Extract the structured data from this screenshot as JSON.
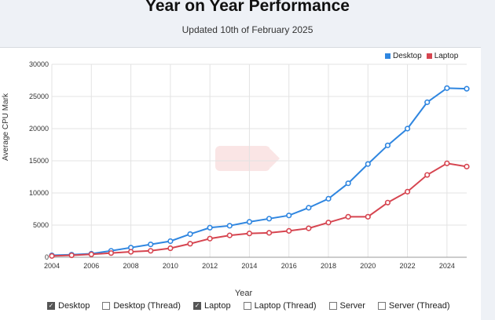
{
  "header": {
    "title": "Year on Year Performance",
    "subtitle": "Updated 10th of February 2025"
  },
  "legend": [
    {
      "label": "Desktop",
      "color": "#2f86e0"
    },
    {
      "label": "Laptop",
      "color": "#d64550"
    }
  ],
  "toggles": [
    {
      "label": "Desktop",
      "checked": true
    },
    {
      "label": "Desktop (Thread)",
      "checked": false
    },
    {
      "label": "Laptop",
      "checked": true
    },
    {
      "label": "Laptop (Thread)",
      "checked": false
    },
    {
      "label": "Server",
      "checked": false
    },
    {
      "label": "Server (Thread)",
      "checked": false
    }
  ],
  "chart_data": {
    "type": "line",
    "xlabel": "Year",
    "ylabel": "Average CPU Mark",
    "x": [
      2004,
      2005,
      2006,
      2007,
      2008,
      2009,
      2010,
      2011,
      2012,
      2013,
      2014,
      2015,
      2016,
      2017,
      2018,
      2019,
      2020,
      2021,
      2022,
      2023,
      2024,
      2025
    ],
    "xticks": [
      "2004",
      "2006",
      "2008",
      "2010",
      "2012",
      "2014",
      "2016",
      "2018",
      "2020",
      "2022",
      "2024"
    ],
    "yticks": [
      "0",
      "5000",
      "10000",
      "15000",
      "20000",
      "25000",
      "30000"
    ],
    "ylim": [
      0,
      30000
    ],
    "xlim": [
      2004,
      2025
    ],
    "grid": true,
    "legend_position": "top-right",
    "series": [
      {
        "name": "Desktop",
        "color": "#2f86e0",
        "values": [
          300,
          400,
          550,
          1000,
          1500,
          2000,
          2500,
          3600,
          4600,
          4900,
          5500,
          6000,
          6500,
          7700,
          9100,
          11500,
          14500,
          17400,
          20000,
          24100,
          26300,
          26200
        ]
      },
      {
        "name": "Laptop",
        "color": "#d64550",
        "values": [
          200,
          300,
          450,
          650,
          850,
          1000,
          1400,
          2100,
          2900,
          3400,
          3700,
          3800,
          4100,
          4500,
          5400,
          6300,
          6300,
          8500,
          10200,
          12800,
          14600,
          14100
        ]
      }
    ]
  }
}
